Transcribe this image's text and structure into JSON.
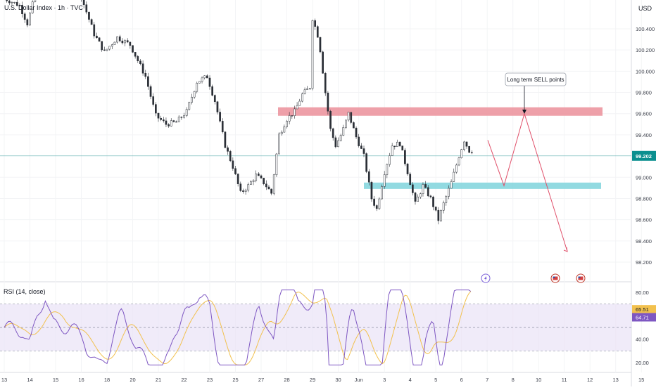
{
  "chart_data": {
    "type": "candlestick",
    "title": "U.S. Dollar Index · 1h · TVC",
    "currency": "USD",
    "last_price": "99.202",
    "price_axis": {
      "range": [
        98.1,
        100.6
      ],
      "ticks": [
        "100.400",
        "100.200",
        "100.000",
        "99.800",
        "99.600",
        "99.400",
        "99.000",
        "98.800",
        "98.600",
        "98.400",
        "98.200"
      ]
    },
    "zones": [
      {
        "name": "resistance",
        "from": 99.58,
        "to": 99.66,
        "color": "#eb8f9a"
      },
      {
        "name": "support",
        "from": 98.89,
        "to": 98.95,
        "color": "#7fd3dc"
      }
    ],
    "annotation": "Long term SELL points",
    "projection": [
      {
        "t": 14.0,
        "v": 99.35
      },
      {
        "t": 14.6,
        "v": 98.92
      },
      {
        "t": 15.4,
        "v": 99.6
      },
      {
        "t": 16.9,
        "v": 98.3
      }
    ],
    "price_series": [
      {
        "t": 0.0,
        "v": 100.7
      },
      {
        "t": 0.7,
        "v": 100.62
      },
      {
        "t": 1.0,
        "v": 100.45
      },
      {
        "t": 1.3,
        "v": 100.72
      },
      {
        "t": 2.0,
        "v": 100.78
      },
      {
        "t": 2.6,
        "v": 100.82
      },
      {
        "t": 3.1,
        "v": 100.7
      },
      {
        "t": 3.6,
        "v": 100.35
      },
      {
        "t": 4.0,
        "v": 100.18
      },
      {
        "t": 4.5,
        "v": 100.32
      },
      {
        "t": 5.0,
        "v": 100.25
      },
      {
        "t": 5.6,
        "v": 99.95
      },
      {
        "t": 6.0,
        "v": 99.58
      },
      {
        "t": 6.4,
        "v": 99.5
      },
      {
        "t": 6.8,
        "v": 99.52
      },
      {
        "t": 7.2,
        "v": 99.62
      },
      {
        "t": 7.6,
        "v": 99.9
      },
      {
        "t": 8.0,
        "v": 99.95
      },
      {
        "t": 8.3,
        "v": 99.72
      },
      {
        "t": 8.7,
        "v": 99.3
      },
      {
        "t": 9.0,
        "v": 99.1
      },
      {
        "t": 9.3,
        "v": 98.85
      },
      {
        "t": 9.6,
        "v": 98.92
      },
      {
        "t": 9.9,
        "v": 99.02
      },
      {
        "t": 10.2,
        "v": 98.95
      },
      {
        "t": 10.5,
        "v": 98.85
      },
      {
        "t": 10.8,
        "v": 99.4
      },
      {
        "t": 11.1,
        "v": 99.55
      },
      {
        "t": 11.4,
        "v": 99.62
      },
      {
        "t": 11.7,
        "v": 99.78
      },
      {
        "t": 12.0,
        "v": 99.85
      },
      {
        "t": 12.1,
        "v": 100.5
      },
      {
        "t": 12.35,
        "v": 100.3
      },
      {
        "t": 12.6,
        "v": 99.8
      },
      {
        "t": 12.8,
        "v": 99.45
      },
      {
        "t": 13.0,
        "v": 99.3
      },
      {
        "t": 13.25,
        "v": 99.42
      },
      {
        "t": 13.5,
        "v": 99.6
      },
      {
        "t": 13.8,
        "v": 99.38
      },
      {
        "t": 14.1,
        "v": 99.2
      },
      {
        "t": 14.4,
        "v": 98.8
      },
      {
        "t": 14.6,
        "v": 98.7
      },
      {
        "t": 14.9,
        "v": 99.05
      },
      {
        "t": 15.2,
        "v": 99.3
      },
      {
        "t": 15.5,
        "v": 99.32
      },
      {
        "t": 15.8,
        "v": 99.05
      },
      {
        "t": 16.1,
        "v": 98.75
      },
      {
        "t": 16.4,
        "v": 98.92
      },
      {
        "t": 16.7,
        "v": 98.8
      },
      {
        "t": 17.0,
        "v": 98.6
      },
      {
        "t": 17.2,
        "v": 98.75
      },
      {
        "t": 17.5,
        "v": 98.95
      },
      {
        "t": 17.8,
        "v": 99.2
      },
      {
        "t": 18.0,
        "v": 99.35
      },
      {
        "t": 18.2,
        "v": 99.25
      }
    ],
    "x_axis_labels": [
      {
        "t": 0.0,
        "label": "13"
      },
      {
        "t": 1.0,
        "label": "14"
      },
      {
        "t": 2.0,
        "label": "15"
      },
      {
        "t": 3.0,
        "label": "16"
      },
      {
        "t": 4.0,
        "label": "18"
      },
      {
        "t": 5.0,
        "label": "20"
      },
      {
        "t": 6.0,
        "label": "21"
      },
      {
        "t": 7.0,
        "label": "22"
      },
      {
        "t": 8.0,
        "label": "23"
      },
      {
        "t": 9.0,
        "label": "25"
      },
      {
        "t": 10.0,
        "label": "27"
      },
      {
        "t": 11.0,
        "label": "28"
      },
      {
        "t": 12.0,
        "label": "29"
      },
      {
        "t": 13.0,
        "label": "30"
      },
      {
        "t": 13.8,
        "label": "Jun"
      },
      {
        "t": 14.8,
        "label": "3"
      },
      {
        "t": 15.8,
        "label": "4"
      },
      {
        "t": 16.8,
        "label": "5"
      },
      {
        "t": 17.8,
        "label": "6"
      },
      {
        "t": 18.8,
        "label": "7"
      },
      {
        "t": 19.8,
        "label": "8"
      },
      {
        "t": 20.8,
        "label": "10"
      },
      {
        "t": 21.8,
        "label": "11"
      },
      {
        "t": 22.8,
        "label": "12"
      },
      {
        "t": 23.8,
        "label": "13"
      },
      {
        "t": 24.8,
        "label": "15"
      }
    ],
    "events": [
      {
        "t": 18.75,
        "type": "flash"
      },
      {
        "t": 21.65,
        "type": "flag"
      },
      {
        "t": 22.7,
        "type": "flag"
      }
    ],
    "rsi": {
      "label": "RSI (14, close)",
      "value": "65.51",
      "ma_value": "64.71",
      "range": [
        15,
        85
      ],
      "ticks": [
        "80.00",
        "60.00",
        "40.00",
        "20.00"
      ],
      "bands": [
        70,
        50,
        30
      ]
    }
  }
}
